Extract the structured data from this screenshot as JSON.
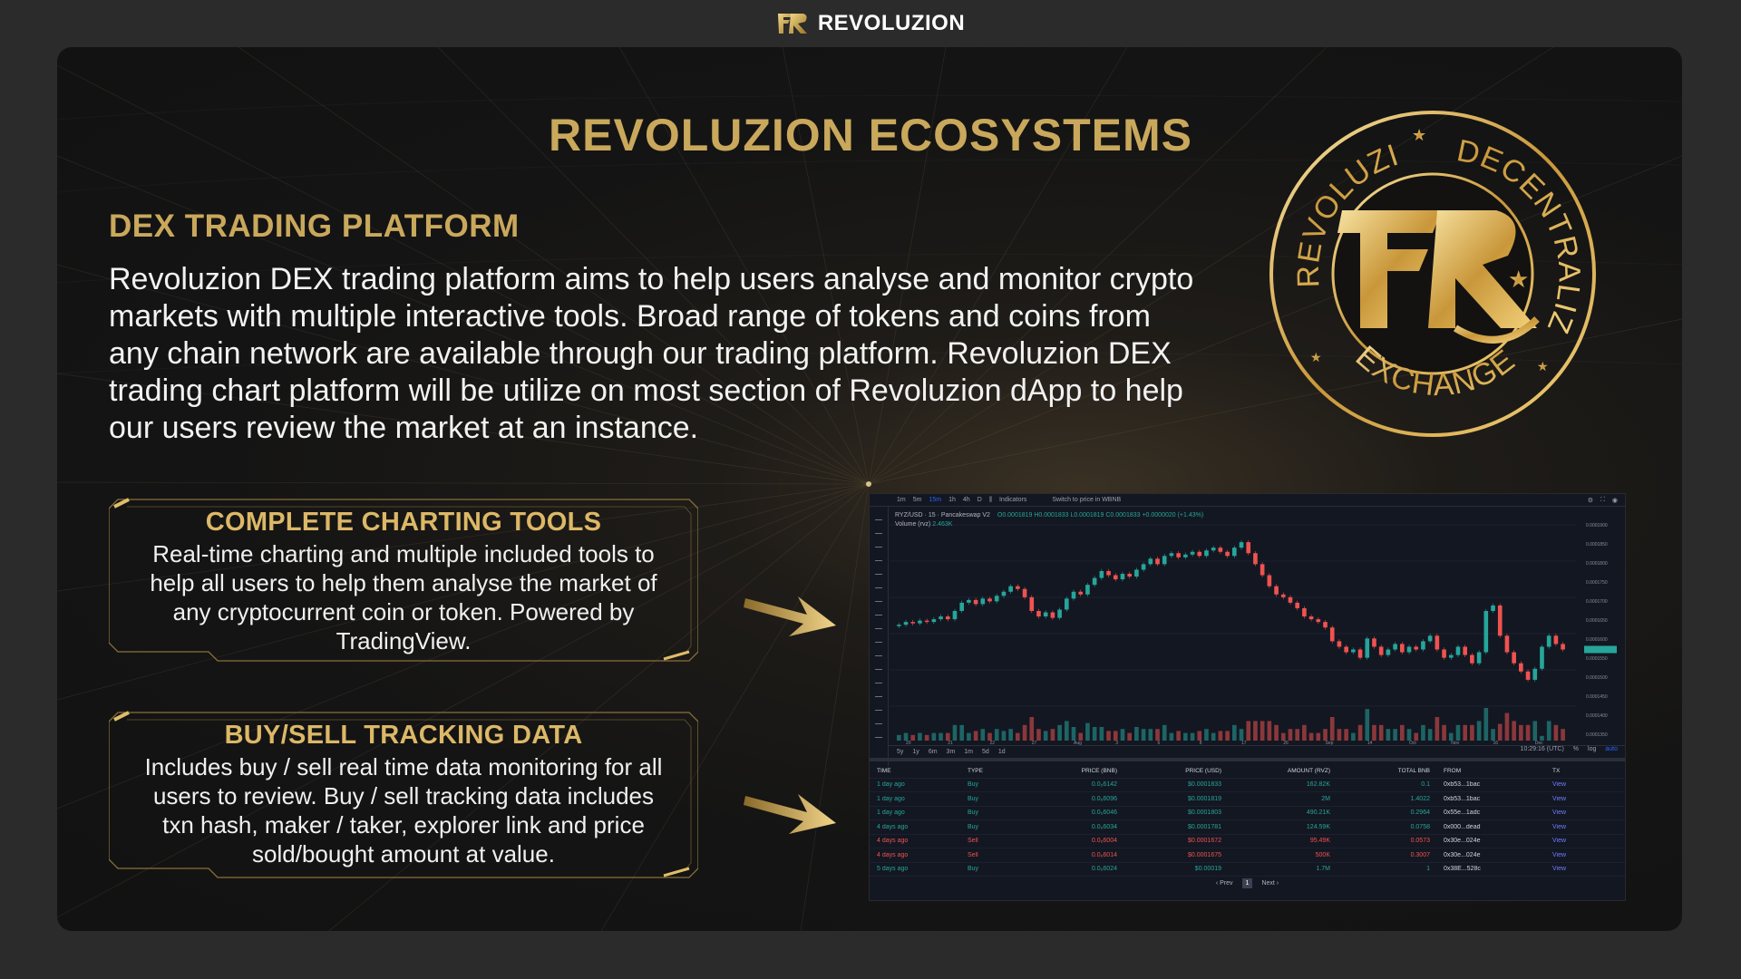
{
  "brand": {
    "name": "REVOLUZION"
  },
  "headline": "REVOLUZION ECOSYSTEMS",
  "section": {
    "title": "DEX TRADING PLATFORM",
    "description": "Revoluzion DEX trading platform aims to help users analyse and monitor crypto markets with multiple interactive tools. Broad range of tokens and coins from any chain network are available through our trading platform. Revoluzion DEX trading chart platform will be utilize on most section of Revoluzion dApp to help our users review the market at an instance."
  },
  "features": [
    {
      "title": "COMPLETE CHARTING TOOLS",
      "description": "Real-time charting and multiple included tools to help all users to help them analyse the market of any cryptocurrent coin or token. Powered by TradingView."
    },
    {
      "title": "BUY/SELL TRACKING DATA",
      "description": "Includes buy / sell real time data monitoring for all users to review. Buy / sell tracking data includes txn hash, maker / taker, explorer link and price sold/bought amount at value."
    }
  ],
  "emblem": {
    "top_text": "REVOLUZION",
    "right_text": "DECENTRALIZED",
    "bottom_text": "EXCHANGE"
  },
  "chart_screen": {
    "intervals": [
      "1m",
      "5m",
      "15m",
      "1h",
      "4h",
      "D"
    ],
    "indicators_label": "Indicators",
    "switch_label": "Switch to price in WBNB",
    "symbol_line": "RYZ/USD · 15 · Pancakeswap V2",
    "ohlc": "O0.0001819 H0.0001833 L0.0001819 C0.0001833 +0.0000020 (+1.43%)",
    "volume_label": "Volume (rvz)",
    "volume_value": "2.463K",
    "price_scale": [
      "0.0001900",
      "0.0001850",
      "0.0001800",
      "0.0001750",
      "0.0001700",
      "0.0001650",
      "0.0001600",
      "0.0001550",
      "0.0001500",
      "0.0001450",
      "0.0001400",
      "0.0001350"
    ],
    "x_labels": [
      "20",
      "21",
      "22",
      "27",
      "Aug",
      "3",
      "6",
      "8",
      "17",
      "26",
      "Sep",
      "14",
      "Oct",
      "Nov",
      "16",
      "Dec"
    ],
    "ranges": [
      "5y",
      "1y",
      "6m",
      "3m",
      "1m",
      "5d",
      "1d"
    ],
    "time_label": "10:29:16 (UTC)",
    "scale_opts": [
      "%",
      "log",
      "auto"
    ],
    "candles": [
      {
        "o": 67,
        "c": 68
      },
      {
        "o": 68,
        "c": 70
      },
      {
        "o": 70,
        "c": 69
      },
      {
        "o": 69,
        "c": 71
      },
      {
        "o": 71,
        "c": 70
      },
      {
        "o": 70,
        "c": 72
      },
      {
        "o": 72,
        "c": 74
      },
      {
        "o": 74,
        "c": 72
      },
      {
        "o": 72,
        "c": 78
      },
      {
        "o": 78,
        "c": 84
      },
      {
        "o": 84,
        "c": 86
      },
      {
        "o": 86,
        "c": 83
      },
      {
        "o": 83,
        "c": 87
      },
      {
        "o": 87,
        "c": 85
      },
      {
        "o": 85,
        "c": 89
      },
      {
        "o": 89,
        "c": 92
      },
      {
        "o": 92,
        "c": 96
      },
      {
        "o": 96,
        "c": 94
      },
      {
        "o": 94,
        "c": 88
      },
      {
        "o": 88,
        "c": 78
      },
      {
        "o": 78,
        "c": 74
      },
      {
        "o": 74,
        "c": 77
      },
      {
        "o": 77,
        "c": 73
      },
      {
        "o": 73,
        "c": 79
      },
      {
        "o": 79,
        "c": 87
      },
      {
        "o": 87,
        "c": 92
      },
      {
        "o": 92,
        "c": 90
      },
      {
        "o": 90,
        "c": 97
      },
      {
        "o": 97,
        "c": 102
      },
      {
        "o": 102,
        "c": 107
      },
      {
        "o": 107,
        "c": 104
      },
      {
        "o": 104,
        "c": 101
      },
      {
        "o": 101,
        "c": 105
      },
      {
        "o": 105,
        "c": 103
      },
      {
        "o": 103,
        "c": 108
      },
      {
        "o": 108,
        "c": 112
      },
      {
        "o": 112,
        "c": 116
      },
      {
        "o": 116,
        "c": 112
      },
      {
        "o": 112,
        "c": 118
      },
      {
        "o": 118,
        "c": 120
      },
      {
        "o": 120,
        "c": 117
      },
      {
        "o": 117,
        "c": 119
      },
      {
        "o": 119,
        "c": 121
      },
      {
        "o": 121,
        "c": 118
      },
      {
        "o": 118,
        "c": 122
      },
      {
        "o": 122,
        "c": 124
      },
      {
        "o": 124,
        "c": 121
      },
      {
        "o": 121,
        "c": 118
      },
      {
        "o": 118,
        "c": 124
      },
      {
        "o": 124,
        "c": 128
      },
      {
        "o": 128,
        "c": 120
      },
      {
        "o": 120,
        "c": 112
      },
      {
        "o": 112,
        "c": 104
      },
      {
        "o": 104,
        "c": 96
      },
      {
        "o": 96,
        "c": 90
      },
      {
        "o": 90,
        "c": 88
      },
      {
        "o": 88,
        "c": 84
      },
      {
        "o": 84,
        "c": 80
      },
      {
        "o": 80,
        "c": 74
      },
      {
        "o": 74,
        "c": 72
      },
      {
        "o": 72,
        "c": 70
      },
      {
        "o": 70,
        "c": 66
      },
      {
        "o": 66,
        "c": 56
      },
      {
        "o": 56,
        "c": 52
      },
      {
        "o": 52,
        "c": 48
      },
      {
        "o": 48,
        "c": 50
      },
      {
        "o": 50,
        "c": 44
      },
      {
        "o": 44,
        "c": 58
      },
      {
        "o": 58,
        "c": 52
      },
      {
        "o": 52,
        "c": 46
      },
      {
        "o": 46,
        "c": 50
      },
      {
        "o": 50,
        "c": 54
      },
      {
        "o": 54,
        "c": 48
      },
      {
        "o": 48,
        "c": 52
      },
      {
        "o": 52,
        "c": 50
      },
      {
        "o": 50,
        "c": 56
      },
      {
        "o": 56,
        "c": 60
      },
      {
        "o": 60,
        "c": 50
      },
      {
        "o": 50,
        "c": 44
      },
      {
        "o": 44,
        "c": 46
      },
      {
        "o": 46,
        "c": 52
      },
      {
        "o": 52,
        "c": 46
      },
      {
        "o": 46,
        "c": 40
      },
      {
        "o": 40,
        "c": 48
      },
      {
        "o": 48,
        "c": 78
      },
      {
        "o": 78,
        "c": 82
      },
      {
        "o": 82,
        "c": 60
      },
      {
        "o": 60,
        "c": 48
      },
      {
        "o": 48,
        "c": 40
      },
      {
        "o": 40,
        "c": 34
      },
      {
        "o": 34,
        "c": 28
      },
      {
        "o": 28,
        "c": 36
      },
      {
        "o": 36,
        "c": 52
      },
      {
        "o": 52,
        "c": 60
      },
      {
        "o": 60,
        "c": 54
      },
      {
        "o": 54,
        "c": 50
      }
    ],
    "table": {
      "headers": [
        "TIME",
        "TYPE",
        "PRICE (BNB)",
        "PRICE (USD)",
        "AMOUNT (RVZ)",
        "TOTAL BNB",
        "FROM",
        "TX"
      ],
      "rows": [
        [
          "1 day ago",
          "Buy",
          "0.0₆6142",
          "$0.0001833",
          "162.82K",
          "0.1",
          "0xb53...1bac",
          "View"
        ],
        [
          "1 day ago",
          "Buy",
          "0.0₆6096",
          "$0.0001819",
          "2M",
          "1.4022",
          "0xb53...1bac",
          "View"
        ],
        [
          "1 day ago",
          "Buy",
          "0.0₆6046",
          "$0.0001803",
          "490.21K",
          "0.2964",
          "0x55e...1adc",
          "View"
        ],
        [
          "4 days ago",
          "Buy",
          "0.0₆6034",
          "$0.0001781",
          "124.59K",
          "0.0758",
          "0x000...dead",
          "View"
        ],
        [
          "4 days ago",
          "Sell",
          "0.0₆6004",
          "$0.0001672",
          "95.49K",
          "0.0573",
          "0x30e...024e",
          "View"
        ],
        [
          "4 days ago",
          "Sell",
          "0.0₆6014",
          "$0.0001675",
          "500K",
          "0.3007",
          "0x30e...024e",
          "View"
        ],
        [
          "5 days ago",
          "Buy",
          "0.0₆6024",
          "$0.00019",
          "1.7M",
          "1",
          "0x38E...528c",
          "View"
        ]
      ]
    },
    "pager": {
      "prev": "‹ Prev",
      "page": "1",
      "next": "Next ›"
    }
  },
  "colors": {
    "gold": "#c9a85c",
    "up": "#26a69a",
    "down": "#ef5350",
    "panel": "#141414"
  }
}
